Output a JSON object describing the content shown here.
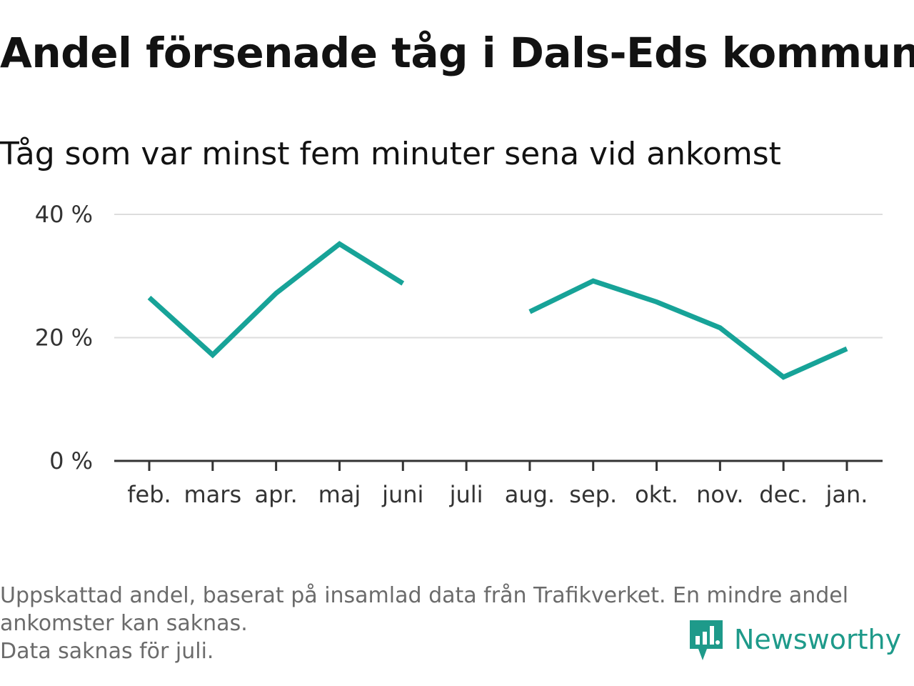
{
  "header": {
    "title": "Andel försenade tåg i Dals-Eds kommun",
    "subtitle": "Tåg som var minst fem minuter sena vid ankomst"
  },
  "chart_data": {
    "type": "line",
    "categories": [
      "feb.",
      "mars",
      "apr.",
      "maj",
      "juni",
      "juli",
      "aug.",
      "sep.",
      "okt.",
      "nov.",
      "dec.",
      "jan."
    ],
    "series": [
      {
        "values": [
          26.5,
          17.2,
          27.2,
          35.2,
          28.8,
          null,
          24.2,
          29.2,
          25.8,
          21.6,
          13.6,
          18.2
        ]
      }
    ],
    "yticks": [
      {
        "value": 0,
        "label": "0 %"
      },
      {
        "value": 20,
        "label": "20 %"
      },
      {
        "value": 40,
        "label": "40 %"
      }
    ],
    "ylim": [
      0,
      40
    ],
    "grid": true,
    "line_color": "#17a398",
    "grid_color": "#dddddd",
    "axis_color": "#333333"
  },
  "footer": {
    "note_lines": [
      "Uppskattad andel, baserat på insamlad data från Trafikverket. En mindre andel",
      "ankomster kan saknas.",
      "Data saknas för juli."
    ],
    "logo_text": "Newsworthy",
    "logo_icon": "newsworthy-logo-icon",
    "brand_color": "#1e9a8a"
  }
}
